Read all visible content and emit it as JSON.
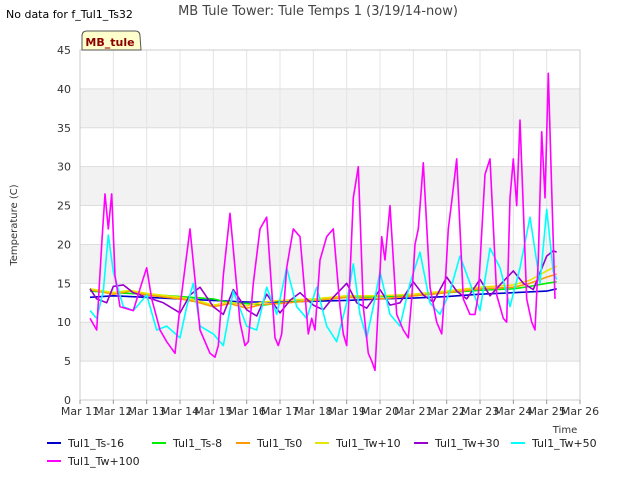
{
  "note": "No data for f_Tul1_Ts32",
  "site_tag": "MB_tule",
  "chart_data": {
    "type": "line",
    "title": "MB Tule Tower: Tule Temps 1 (3/19/14-now)",
    "xlabel": "Time",
    "ylabel": "Temperature (C)",
    "xlim": [
      11,
      26
    ],
    "ylim": [
      0,
      45
    ],
    "x_ticks": [
      11,
      12,
      13,
      14,
      15,
      16,
      17,
      18,
      19,
      20,
      21,
      22,
      23,
      24,
      25,
      26
    ],
    "x_tick_labels": [
      "Mar 11",
      "Mar 12",
      "Mar 13",
      "Mar 14",
      "Mar 15",
      "Mar 16",
      "Mar 17",
      "Mar 18",
      "Mar 19",
      "Mar 20",
      "Mar 21",
      "Mar 22",
      "Mar 23",
      "Mar 24",
      "Mar 25",
      "Mar 26"
    ],
    "y_ticks": [
      0,
      5,
      10,
      15,
      20,
      25,
      30,
      35,
      40,
      45
    ],
    "y_tick_labels": [
      "0",
      "5",
      "10",
      "15",
      "20",
      "25",
      "30",
      "35",
      "40",
      "45"
    ],
    "grid": true,
    "legend_position": "bottom",
    "series": [
      {
        "name": "Tul1_Ts-16",
        "color": "#0000cc",
        "x": [
          11.3,
          12.0,
          13.0,
          14.0,
          15.0,
          16.0,
          17.0,
          18.0,
          19.0,
          20.0,
          21.0,
          22.0,
          23.0,
          24.0,
          25.0,
          25.3
        ],
        "y": [
          13.2,
          13.4,
          13.2,
          13.0,
          12.8,
          12.6,
          12.6,
          12.7,
          12.8,
          13.0,
          13.1,
          13.3,
          13.6,
          13.8,
          14.0,
          14.3
        ]
      },
      {
        "name": "Tul1_Ts-8",
        "color": "#00ee00",
        "x": [
          11.3,
          12.0,
          13.0,
          14.0,
          15.0,
          15.5,
          16.0,
          16.5,
          17.0,
          18.0,
          19.0,
          20.0,
          21.0,
          22.0,
          23.0,
          24.0,
          24.5,
          25.0,
          25.3
        ],
        "y": [
          14.0,
          13.8,
          13.6,
          13.3,
          13.0,
          12.5,
          12.4,
          12.2,
          12.5,
          12.8,
          13.2,
          13.3,
          13.4,
          13.8,
          14.1,
          14.3,
          14.6,
          15.0,
          15.2
        ]
      },
      {
        "name": "Tul1_Ts0",
        "color": "#ff9900",
        "x": [
          11.3,
          12.0,
          12.5,
          13.0,
          14.0,
          14.5,
          15.0,
          15.5,
          16.0,
          16.5,
          17.0,
          18.0,
          19.0,
          20.0,
          21.0,
          22.0,
          23.0,
          24.0,
          24.5,
          25.0,
          25.3
        ],
        "y": [
          14.2,
          13.6,
          14.0,
          13.5,
          13.0,
          12.6,
          12.0,
          12.4,
          11.8,
          12.3,
          12.4,
          12.8,
          13.2,
          13.0,
          13.4,
          13.8,
          14.3,
          14.5,
          15.0,
          15.8,
          16.2
        ]
      },
      {
        "name": "Tul1_Tw+10",
        "color": "#e6e600",
        "x": [
          11.3,
          12.0,
          12.5,
          13.0,
          14.0,
          14.5,
          15.0,
          15.5,
          16.0,
          16.5,
          17.0,
          18.0,
          19.0,
          20.0,
          21.0,
          22.0,
          23.0,
          24.0,
          24.5,
          25.0,
          25.3
        ],
        "y": [
          14.3,
          13.8,
          14.1,
          13.7,
          13.2,
          12.8,
          12.2,
          12.6,
          12.1,
          12.6,
          12.8,
          13.0,
          13.4,
          13.4,
          13.6,
          14.0,
          14.5,
          14.8,
          15.4,
          16.6,
          17.2
        ]
      },
      {
        "name": "Tul1_Tw+30",
        "color": "#9900cc",
        "x": [
          11.3,
          11.5,
          11.8,
          12.0,
          12.3,
          12.6,
          13.0,
          13.5,
          14.0,
          14.3,
          14.6,
          15.0,
          15.3,
          15.6,
          16.0,
          16.3,
          16.6,
          17.0,
          17.3,
          17.6,
          18.0,
          18.3,
          18.6,
          19.0,
          19.3,
          19.6,
          20.0,
          20.3,
          20.6,
          21.0,
          21.3,
          21.6,
          22.0,
          22.3,
          22.6,
          23.0,
          23.3,
          23.6,
          24.0,
          24.3,
          24.6,
          25.0,
          25.2,
          25.3
        ],
        "y": [
          14.3,
          13.0,
          12.5,
          14.6,
          14.8,
          13.8,
          13.2,
          12.5,
          11.2,
          13.5,
          14.5,
          12.0,
          11.0,
          14.2,
          11.6,
          10.8,
          13.6,
          11.2,
          12.8,
          13.8,
          12.2,
          11.6,
          13.2,
          15.0,
          12.5,
          11.8,
          14.2,
          12.2,
          12.5,
          15.2,
          13.5,
          12.6,
          15.8,
          14.0,
          13.0,
          15.5,
          13.4,
          14.8,
          16.6,
          15.0,
          14.2,
          18.5,
          19.2,
          19.0
        ]
      },
      {
        "name": "Tul1_Tw+50",
        "color": "#00ffff",
        "x": [
          11.3,
          11.5,
          11.7,
          11.85,
          12.0,
          12.3,
          12.6,
          13.0,
          13.3,
          13.6,
          14.0,
          14.2,
          14.4,
          14.6,
          15.0,
          15.3,
          15.6,
          16.0,
          16.3,
          16.6,
          16.9,
          17.2,
          17.5,
          17.8,
          18.1,
          18.4,
          18.7,
          19.0,
          19.2,
          19.4,
          19.6,
          19.8,
          20.0,
          20.3,
          20.6,
          20.9,
          21.2,
          21.5,
          21.8,
          22.1,
          22.4,
          22.7,
          23.0,
          23.3,
          23.6,
          23.9,
          24.2,
          24.5,
          24.8,
          25.0,
          25.2,
          25.3
        ],
        "y": [
          11.5,
          10.5,
          14.0,
          21.2,
          16.5,
          12.0,
          11.5,
          13.5,
          9.0,
          9.5,
          8.0,
          12.0,
          15.0,
          9.5,
          8.5,
          7.0,
          14.0,
          9.5,
          9.0,
          14.5,
          11.0,
          17.0,
          12.0,
          10.5,
          14.5,
          9.5,
          7.5,
          12.5,
          17.5,
          11.0,
          8.0,
          12.0,
          16.5,
          11.0,
          9.5,
          15.0,
          19.0,
          12.5,
          11.0,
          14.0,
          18.5,
          15.0,
          11.5,
          19.5,
          17.0,
          12.0,
          17.0,
          23.5,
          15.0,
          24.5,
          16.5,
          15.5
        ]
      },
      {
        "name": "Tul1_Tw+100",
        "color": "#ff00ff",
        "x": [
          11.3,
          11.5,
          11.65,
          11.75,
          11.85,
          11.95,
          12.05,
          12.2,
          12.6,
          12.85,
          13.0,
          13.15,
          13.4,
          13.6,
          13.85,
          14.0,
          14.15,
          14.3,
          14.6,
          14.9,
          15.05,
          15.15,
          15.3,
          15.5,
          15.8,
          15.95,
          16.05,
          16.2,
          16.4,
          16.6,
          16.85,
          16.95,
          17.05,
          17.2,
          17.4,
          17.6,
          17.85,
          17.95,
          18.05,
          18.2,
          18.4,
          18.6,
          18.8,
          18.9,
          19.0,
          19.1,
          19.2,
          19.35,
          19.5,
          19.65,
          19.75,
          19.85,
          19.95,
          20.05,
          20.15,
          20.3,
          20.5,
          20.7,
          20.85,
          20.95,
          21.05,
          21.15,
          21.3,
          21.5,
          21.7,
          21.85,
          21.95,
          22.05,
          22.15,
          22.3,
          22.5,
          22.7,
          22.85,
          22.95,
          23.05,
          23.15,
          23.3,
          23.5,
          23.7,
          23.8,
          23.9,
          24.0,
          24.1,
          24.2,
          24.4,
          24.55,
          24.65,
          24.75,
          24.85,
          24.95,
          25.05,
          25.15,
          25.25
        ],
        "y": [
          10.5,
          9.0,
          20.0,
          26.5,
          22.0,
          26.5,
          16.0,
          12.0,
          11.5,
          15.0,
          17.0,
          13.0,
          9.0,
          7.5,
          6.0,
          12.0,
          17.0,
          22.0,
          9.0,
          6.0,
          5.5,
          7.0,
          16.0,
          24.0,
          10.0,
          7.0,
          7.5,
          15.0,
          22.0,
          23.5,
          8.0,
          7.0,
          8.5,
          17.0,
          22.0,
          21.0,
          8.5,
          10.5,
          9.0,
          18.0,
          21.0,
          22.0,
          12.0,
          8.5,
          7.0,
          16.0,
          26.0,
          30.0,
          12.0,
          6.0,
          5.0,
          3.8,
          12.0,
          21.0,
          18.0,
          25.0,
          11.0,
          9.0,
          8.0,
          13.0,
          20.0,
          22.0,
          30.5,
          14.5,
          10.0,
          8.5,
          14.5,
          22.0,
          25.5,
          31.0,
          13.0,
          11.0,
          11.0,
          13.5,
          21.5,
          29.0,
          31.0,
          13.5,
          10.5,
          10.0,
          26.0,
          31.0,
          25.0,
          36.0,
          13.0,
          10.0,
          9.0,
          18.0,
          34.5,
          26.0,
          42.0,
          27.0,
          13.0
        ]
      }
    ]
  }
}
